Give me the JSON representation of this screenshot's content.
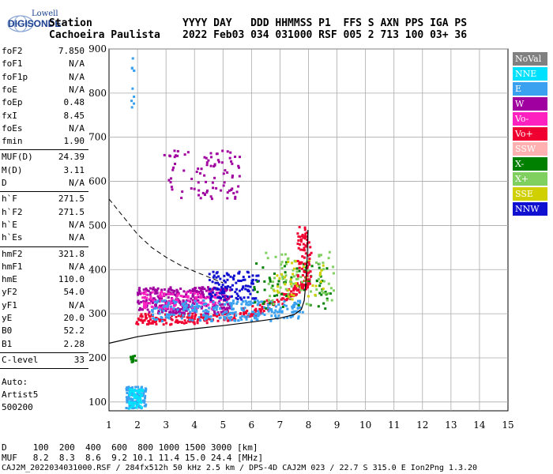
{
  "logo": {
    "line1": "Lowell",
    "line2": "DIGISONDE"
  },
  "header": {
    "line1_label": "Station",
    "station": "Cachoeira Paulista",
    "cols_labels": "YYYY DAY   DDD HHMMSS P1  FFS S AXN PPS IGA PS",
    "cols_values": "2022 Feb03 034 031000 RSF 005 2 713 100 03+ 36"
  },
  "params": {
    "groupA": [
      {
        "k": "foF2",
        "v": "7.850"
      },
      {
        "k": "foF1",
        "v": "N/A"
      },
      {
        "k": "foF1p",
        "v": "N/A"
      },
      {
        "k": "foE",
        "v": "N/A"
      },
      {
        "k": "foEp",
        "v": "0.48"
      },
      {
        "k": "fxI",
        "v": "8.45"
      },
      {
        "k": "foEs",
        "v": "N/A"
      },
      {
        "k": "fmin",
        "v": "1.90"
      }
    ],
    "groupB": [
      {
        "k": "MUF(D)",
        "v": "24.39"
      },
      {
        "k": "M(D)",
        "v": "3.11"
      },
      {
        "k": "D",
        "v": "N/A"
      }
    ],
    "groupC": [
      {
        "k": "h`F",
        "v": "271.5"
      },
      {
        "k": "h`F2",
        "v": "271.5"
      },
      {
        "k": "h`E",
        "v": "N/A"
      },
      {
        "k": "h`Es",
        "v": "N/A"
      }
    ],
    "groupD": [
      {
        "k": "hmF2",
        "v": "321.8"
      },
      {
        "k": "hmF1",
        "v": "N/A"
      },
      {
        "k": "hmE",
        "v": "110.0"
      },
      {
        "k": "yF2",
        "v": "54.0"
      },
      {
        "k": "yF1",
        "v": "N/A"
      },
      {
        "k": "yE",
        "v": "20.0"
      },
      {
        "k": "B0",
        "v": "52.2"
      },
      {
        "k": "B1",
        "v": "2.28"
      }
    ],
    "clevel": {
      "k": "C-level",
      "v": "33"
    },
    "auto": [
      "Auto:",
      "Artist5",
      "500200"
    ]
  },
  "footer": {
    "d_row": "D     100  200  400  600  800 1000 1500 3000 [km]",
    "muf_row": "MUF   8.2  8.3  8.6  9.2 10.1 11.4 15.0 24.4 [MHz]",
    "info": "CAJ2M_2022034031000.RSF / 284fx512h 50 kHz 2.5 km / DPS-4D CAJ2M 023 / 22.7 S 315.0 E Ion2Png 1.3.20"
  },
  "legend": [
    {
      "label": "NoVal",
      "bg": "#808080",
      "fg": "#ffffff"
    },
    {
      "label": "NNE",
      "bg": "#00e0ff",
      "fg": "#ffffff"
    },
    {
      "label": "E",
      "bg": "#3aa0f0",
      "fg": "#ffffff"
    },
    {
      "label": "W",
      "bg": "#a000a0",
      "fg": "#ffffff"
    },
    {
      "label": "Vo-",
      "bg": "#ff20c0",
      "fg": "#ffffff"
    },
    {
      "label": "Vo+",
      "bg": "#f00030",
      "fg": "#ffffff"
    },
    {
      "label": "SSW",
      "bg": "#ffb0b0",
      "fg": "#ffffff"
    },
    {
      "label": "X-",
      "bg": "#008000",
      "fg": "#ffffff"
    },
    {
      "label": "X+",
      "bg": "#80d060",
      "fg": "#ffffff"
    },
    {
      "label": "SSE",
      "bg": "#d0d000",
      "fg": "#ffffff"
    },
    {
      "label": "NNW",
      "bg": "#1010d0",
      "fg": "#ffffff"
    }
  ],
  "chart_data": {
    "type": "scatter",
    "xlim": [
      1,
      15
    ],
    "ylim": [
      80,
      900
    ],
    "x_ticks": [
      "1",
      "2",
      "3",
      "4",
      "5",
      "6",
      "7",
      "8",
      "9",
      "10",
      "11",
      "12",
      "13",
      "14",
      "15"
    ],
    "y_ticks": [
      "100",
      "200",
      "300",
      "400",
      "500",
      "600",
      "700",
      "800",
      "900"
    ],
    "y_tick_values": [
      100,
      200,
      300,
      400,
      500,
      600,
      700,
      800,
      900
    ],
    "grid": true,
    "legend_position": "right",
    "profile_curve": [
      [
        1,
        233
      ],
      [
        2,
        248
      ],
      [
        3,
        258
      ],
      [
        4,
        266
      ],
      [
        5,
        273
      ],
      [
        6,
        281
      ],
      [
        7,
        290
      ],
      [
        7.5,
        298
      ],
      [
        7.75,
        310
      ],
      [
        7.85,
        330
      ],
      [
        7.9,
        365
      ],
      [
        7.95,
        420
      ],
      [
        7.98,
        490
      ]
    ],
    "dashed_curve": [
      [
        1,
        560
      ],
      [
        1.5,
        520
      ],
      [
        2,
        480
      ],
      [
        2.5,
        450
      ],
      [
        3,
        428
      ],
      [
        3.5,
        410
      ],
      [
        4,
        396
      ],
      [
        4.5,
        383
      ],
      [
        5,
        370
      ]
    ],
    "clusters": [
      {
        "name": "F-trace",
        "color": "#f00030",
        "x": [
          1.95,
          8.0
        ],
        "y": [
          275,
          300
        ],
        "rise": true,
        "n": 260
      },
      {
        "name": "F-upper",
        "color": "#a000a0",
        "x": [
          2.0,
          5.3
        ],
        "y": [
          300,
          360
        ],
        "n": 320
      },
      {
        "name": "F-upper",
        "color": "#ff20c0",
        "x": [
          2.1,
          5.0
        ],
        "y": [
          310,
          350
        ],
        "n": 120
      },
      {
        "name": "E",
        "color": "#3aa0f0",
        "x": [
          2.5,
          7.8
        ],
        "y": [
          283,
          330
        ],
        "n": 260
      },
      {
        "name": "NNW",
        "color": "#1010d0",
        "x": [
          4.5,
          6.3
        ],
        "y": [
          330,
          395
        ],
        "n": 110
      },
      {
        "name": "X-",
        "color": "#008000",
        "x": [
          6.0,
          8.8
        ],
        "y": [
          310,
          420
        ],
        "n": 70
      },
      {
        "name": "X+",
        "color": "#80d060",
        "x": [
          6.5,
          8.9
        ],
        "y": [
          320,
          440
        ],
        "n": 80
      },
      {
        "name": "SSE",
        "color": "#d0d000",
        "x": [
          6.8,
          8.6
        ],
        "y": [
          330,
          420
        ],
        "n": 40
      },
      {
        "name": "Vo+ high",
        "color": "#f00030",
        "x": [
          7.6,
          8.1
        ],
        "y": [
          350,
          500
        ],
        "n": 80
      },
      {
        "name": "W multi",
        "color": "#a000a0",
        "x": [
          2.9,
          5.6
        ],
        "y": [
          560,
          670
        ],
        "n": 90
      },
      {
        "name": "Es low",
        "color": "#3aa0f0",
        "x": [
          1.6,
          2.3
        ],
        "y": [
          85,
          135
        ],
        "n": 110
      },
      {
        "name": "Es low NNE",
        "color": "#00e0ff",
        "x": [
          1.7,
          2.2
        ],
        "y": [
          85,
          130
        ],
        "n": 60
      },
      {
        "name": "Es 200",
        "color": "#008000",
        "x": [
          1.75,
          1.95
        ],
        "y": [
          190,
          205
        ],
        "n": 15
      },
      {
        "name": "spike",
        "color": "#3aa0f0",
        "x": [
          1.78,
          1.88
        ],
        "y": [
          760,
          890
        ],
        "n": 10
      }
    ]
  }
}
